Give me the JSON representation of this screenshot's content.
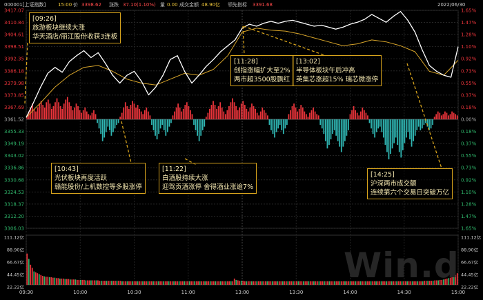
{
  "header": {
    "code": "000001[上证指数]",
    "time": "15:00",
    "price_label": "价",
    "price": "3398.62",
    "change_label": "涨跌",
    "change": "37.10(1.10%)",
    "vol_label": "量",
    "vol": "0.00",
    "amount_label": "成交金额",
    "amount": "48.90亿",
    "indicator_label": "领先指标",
    "indicator": "3391.68",
    "date": "2022/06/30"
  },
  "colors": {
    "up": "#e8343a",
    "down": "#2fb5b2",
    "price_line": "#ffffff",
    "avg_line": "#d8a52a",
    "annotation_border": "#d8a41c",
    "annotation_text": "#f4e7b0"
  },
  "chart_data": {
    "type": "line",
    "base": 3361.52,
    "x_ticks": [
      "09:30",
      "10:00",
      "10:30",
      "11:00",
      "13:00",
      "13:30",
      "14:00",
      "14:30",
      "15:00"
    ],
    "y_left_ticks": [
      "3417.07",
      "3410.84",
      "3404.61",
      "3398.51",
      "3392.35",
      "3386.18",
      "3379.98",
      "3373.85",
      "3367.69",
      "3361.52",
      "3355.33",
      "3349.19",
      "3343.02",
      "3336.86",
      "3330.68",
      "3324.53",
      "3318.37",
      "3312.20",
      "3306.03"
    ],
    "y_right_ticks": [
      "1.65%",
      "1.47%",
      "1.28%",
      "1.10%",
      "0.92%",
      "0.73%",
      "0.55%",
      "0.37%",
      "0.18%",
      "0.00%",
      "0.18%",
      "0.37%",
      "0.55%",
      "0.73%",
      "0.92%",
      "1.10%",
      "1.28%",
      "1.47%",
      "1.65%"
    ],
    "volume_ticks_left": [
      "111.12亿",
      "88.90亿",
      "66.67亿",
      "44.45亿",
      "22.22亿"
    ],
    "volume_ticks_right": [
      "111.12亿",
      "88.90亿",
      "66.67亿",
      "44.45亿",
      "22.22亿"
    ],
    "ylim": [
      3306.03,
      3417.07
    ],
    "volume_ylim": [
      0,
      111.12
    ],
    "series": [
      {
        "name": "价",
        "points": [
          [
            0,
            3362.5
          ],
          [
            4,
            3370.0
          ],
          [
            8,
            3378.0
          ],
          [
            12,
            3385.0
          ],
          [
            16,
            3388.0
          ],
          [
            20,
            3385.5
          ],
          [
            24,
            3391.0
          ],
          [
            28,
            3394.0
          ],
          [
            32,
            3396.5
          ],
          [
            36,
            3393.0
          ],
          [
            40,
            3395.5
          ],
          [
            44,
            3390.0
          ],
          [
            48,
            3384.0
          ],
          [
            52,
            3380.0
          ],
          [
            56,
            3384.0
          ],
          [
            60,
            3386.0
          ],
          [
            64,
            3381.0
          ],
          [
            68,
            3374.0
          ],
          [
            72,
            3378.0
          ],
          [
            76,
            3384.0
          ],
          [
            80,
            3392.0
          ],
          [
            84,
            3394.0
          ],
          [
            88,
            3386.0
          ],
          [
            92,
            3380.0
          ],
          [
            96,
            3384.0
          ],
          [
            100,
            3388.5
          ],
          [
            104,
            3392.0
          ],
          [
            108,
            3396.0
          ],
          [
            112,
            3399.0
          ],
          [
            116,
            3402.0
          ],
          [
            120,
            3408.0
          ],
          [
            124,
            3410.0
          ],
          [
            128,
            3409.0
          ],
          [
            132,
            3410.5
          ],
          [
            136,
            3411.5
          ],
          [
            140,
            3410.5
          ],
          [
            144,
            3411.5
          ],
          [
            148,
            3412.0
          ],
          [
            152,
            3411.0
          ],
          [
            156,
            3410.0
          ],
          [
            160,
            3409.0
          ],
          [
            164,
            3409.5
          ],
          [
            168,
            3408.5
          ],
          [
            172,
            3407.5
          ],
          [
            176,
            3408.5
          ],
          [
            180,
            3410.0
          ],
          [
            184,
            3411.0
          ],
          [
            188,
            3412.5
          ],
          [
            192,
            3415.0
          ],
          [
            196,
            3413.0
          ],
          [
            200,
            3411.0
          ],
          [
            204,
            3414.0
          ],
          [
            208,
            3416.5
          ],
          [
            212,
            3412.0
          ],
          [
            216,
            3406.0
          ],
          [
            220,
            3397.0
          ],
          [
            224,
            3389.0
          ],
          [
            228,
            3386.0
          ],
          [
            232,
            3384.0
          ],
          [
            236,
            3383.0
          ],
          [
            240,
            3398.6
          ]
        ]
      },
      {
        "name": "领先指标",
        "points": [
          [
            0,
            3362.5
          ],
          [
            8,
            3370.0
          ],
          [
            16,
            3378.0
          ],
          [
            24,
            3384.0
          ],
          [
            32,
            3388.0
          ],
          [
            40,
            3389.0
          ],
          [
            48,
            3386.0
          ],
          [
            56,
            3382.0
          ],
          [
            64,
            3380.0
          ],
          [
            72,
            3379.0
          ],
          [
            80,
            3382.0
          ],
          [
            88,
            3385.0
          ],
          [
            96,
            3384.0
          ],
          [
            104,
            3387.0
          ],
          [
            112,
            3394.0
          ],
          [
            120,
            3406.0
          ],
          [
            128,
            3408.0
          ],
          [
            136,
            3407.0
          ],
          [
            144,
            3406.5
          ],
          [
            152,
            3405.0
          ],
          [
            160,
            3403.0
          ],
          [
            168,
            3401.0
          ],
          [
            176,
            3399.0
          ],
          [
            184,
            3400.0
          ],
          [
            192,
            3402.0
          ],
          [
            200,
            3401.0
          ],
          [
            208,
            3399.0
          ],
          [
            216,
            3396.0
          ],
          [
            224,
            3386.0
          ],
          [
            232,
            3384.0
          ],
          [
            240,
            3391.68
          ]
        ]
      }
    ],
    "breadth_bars": {
      "name": "涨跌家数",
      "values": [
        3,
        6,
        9,
        12,
        8,
        6,
        9,
        12,
        14,
        11,
        9,
        13,
        15,
        12,
        8,
        10,
        13,
        16,
        13,
        10,
        8,
        12,
        15,
        17,
        13,
        10,
        7,
        9,
        12,
        10,
        7,
        5,
        7,
        9,
        6,
        4,
        3,
        5,
        7,
        4,
        -2,
        -5,
        -8,
        -12,
        -10,
        -7,
        -4,
        -6,
        -9,
        -7,
        -5,
        -3,
        -2,
        2,
        5,
        9,
        13,
        10,
        8,
        11,
        14,
        12,
        9,
        11,
        8,
        6,
        4,
        7,
        9,
        6,
        3,
        -3,
        -6,
        -9,
        -11,
        -8,
        -5,
        -3,
        -6,
        -9,
        -7,
        -4,
        -2,
        3,
        6,
        9,
        12,
        9,
        6,
        8,
        11,
        13,
        10,
        7,
        4,
        -3,
        -6,
        -9,
        -12,
        -9,
        -6,
        -4,
        2,
        5,
        8,
        11,
        14,
        11,
        8,
        10,
        13,
        9,
        6,
        4,
        7,
        10,
        13,
        16,
        13,
        10,
        7,
        9,
        12,
        14,
        11,
        8,
        6,
        9,
        12,
        10,
        8,
        5,
        3,
        6,
        9,
        7,
        5,
        3,
        -3,
        -6,
        -8,
        -10,
        -7,
        -5,
        -3,
        -6,
        -8,
        -5,
        -3,
        4,
        7,
        10,
        12,
        9,
        6,
        8,
        11,
        9,
        6,
        4,
        2,
        5,
        7,
        9,
        6,
        4,
        3,
        -3,
        -5,
        -8,
        -12,
        -16,
        -14,
        -11,
        -8,
        -6,
        -9,
        -12,
        -15,
        -18,
        -15,
        -12,
        -9,
        -6,
        4,
        7,
        10,
        7,
        5,
        3,
        6,
        9,
        7,
        5,
        3,
        -2,
        -5,
        -8,
        -10,
        -7,
        -5,
        -4,
        -7,
        -10,
        -14,
        -18,
        -22,
        -19,
        -16,
        -13,
        -10,
        -14,
        -18,
        -21,
        -17,
        -13,
        -10,
        -7,
        -11,
        -15,
        -12,
        -9,
        -6,
        -4,
        -6,
        -5,
        -3,
        -2,
        -4,
        -6,
        -5,
        -3,
        2,
        4,
        6,
        5,
        3,
        4,
        6,
        5,
        3,
        4,
        6,
        5,
        4,
        3
      ]
    },
    "volume": {
      "name": "成交金额",
      "values": [
        70,
        58,
        45,
        38,
        30,
        28,
        26,
        24,
        22,
        20,
        19,
        18,
        18,
        17,
        17,
        16,
        16,
        15,
        15,
        14,
        14,
        14,
        13,
        13,
        13,
        12,
        12,
        12,
        12,
        11,
        11,
        11,
        11,
        11,
        10,
        10,
        10,
        10,
        10,
        10,
        10,
        10,
        9,
        9,
        9,
        9,
        9,
        9,
        9,
        9,
        9,
        9,
        9,
        9,
        9,
        8,
        8,
        8,
        8,
        8,
        8,
        8,
        8,
        8,
        8,
        8,
        8,
        8,
        8,
        8,
        8,
        8,
        8,
        8,
        8,
        8,
        8,
        8,
        8,
        8,
        8,
        8,
        8,
        8,
        8,
        8,
        8,
        8,
        8,
        8,
        8,
        8,
        8,
        8,
        8,
        8,
        8,
        8,
        8,
        8,
        8,
        8,
        8,
        8,
        8,
        8,
        8,
        8,
        8,
        8,
        8,
        8,
        8,
        8,
        8,
        8,
        8,
        8,
        8,
        8,
        14,
        11,
        10,
        9,
        9,
        9,
        8,
        8,
        8,
        8,
        8,
        8,
        8,
        8,
        8,
        8,
        8,
        8,
        8,
        8,
        8,
        8,
        8,
        8,
        8,
        8,
        8,
        8,
        8,
        8,
        8,
        8,
        8,
        8,
        8,
        8,
        8,
        8,
        8,
        8,
        8,
        8,
        8,
        8,
        8,
        8,
        8,
        8,
        8,
        8,
        8,
        8,
        8,
        8,
        8,
        8,
        8,
        8,
        8,
        8,
        8,
        8,
        8,
        8,
        8,
        8,
        8,
        8,
        8,
        8,
        8,
        8,
        8,
        8,
        8,
        8,
        8,
        8,
        8,
        8,
        8,
        8,
        8,
        8,
        8,
        8,
        8,
        8,
        8,
        8,
        8,
        8,
        8,
        8,
        8,
        8,
        8,
        8,
        8,
        8,
        8,
        8,
        8,
        8,
        8,
        8,
        8,
        8,
        8,
        8,
        9,
        9,
        9,
        9,
        9,
        9,
        10,
        10,
        10,
        11,
        11,
        12,
        13,
        14,
        15,
        16,
        18,
        20,
        22,
        26
      ]
    }
  },
  "annotations": [
    {
      "time": "[09:26]",
      "lines": [
        "旅游板块继续大涨",
        "华天酒店/丽江股份收获3连板"
      ]
    },
    {
      "time": "[10:43]",
      "lines": [
        "光伏板块再度活跃",
        "赣能股份/上机数控等多股涨停"
      ]
    },
    {
      "time": "[11:22]",
      "lines": [
        "白酒股持续大涨",
        "迎驾贡酒涨停 舍得酒业涨逾7%"
      ]
    },
    {
      "time": "[11:28]",
      "lines": [
        "创指涨幅扩大至2%",
        "两市超3500股飘红"
      ]
    },
    {
      "time": "[13:02]",
      "lines": [
        "半导体板块午后冲高",
        "英集芯涨超15% 瑞芯微涨停"
      ]
    },
    {
      "time": "[14:25]",
      "lines": [
        "沪深两市成交额",
        "连续第六个交易日突破万亿"
      ]
    }
  ],
  "watermark": "Win.d"
}
